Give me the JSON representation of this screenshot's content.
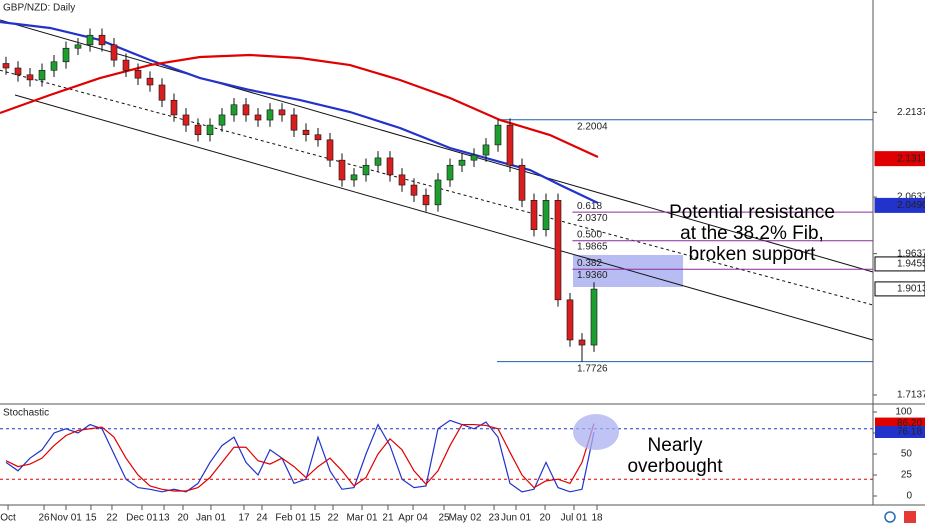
{
  "chart_data": {
    "type": "candlestick",
    "title": "GBP/NZD: Daily",
    "up_color": "#1e9e2e",
    "down_color": "#d81e1e",
    "open": [
      2.3,
      2.292,
      2.28,
      2.271,
      2.288,
      2.303,
      2.327,
      2.333,
      2.35,
      2.333,
      2.306,
      2.288,
      2.274,
      2.262,
      2.235,
      2.209,
      2.191,
      2.174,
      2.191,
      2.209,
      2.227,
      2.209,
      2.2,
      2.218,
      2.209,
      2.182,
      2.174,
      2.165,
      2.129,
      2.094,
      2.103,
      2.12,
      2.133,
      2.103,
      2.085,
      2.067,
      2.05,
      2.094,
      2.12,
      2.129,
      2.138,
      2.156,
      2.191,
      2.12,
      2.058,
      2.006,
      2.058,
      1.882,
      1.811,
      1.802
    ],
    "high": [
      2.312,
      2.304,
      2.292,
      2.3,
      2.315,
      2.339,
      2.345,
      2.362,
      2.362,
      2.345,
      2.318,
      2.3,
      2.286,
      2.274,
      2.247,
      2.221,
      2.203,
      2.203,
      2.221,
      2.239,
      2.239,
      2.221,
      2.23,
      2.23,
      2.221,
      2.194,
      2.186,
      2.177,
      2.141,
      2.115,
      2.132,
      2.145,
      2.145,
      2.115,
      2.097,
      2.079,
      2.106,
      2.132,
      2.141,
      2.15,
      2.168,
      2.2004,
      2.203,
      2.132,
      2.07,
      2.07,
      2.07,
      1.894,
      1.823,
      1.913
    ],
    "low": [
      2.28,
      2.268,
      2.259,
      2.259,
      2.276,
      2.291,
      2.315,
      2.321,
      2.321,
      2.294,
      2.276,
      2.262,
      2.25,
      2.223,
      2.197,
      2.179,
      2.162,
      2.162,
      2.179,
      2.197,
      2.197,
      2.188,
      2.188,
      2.197,
      2.17,
      2.162,
      2.153,
      2.117,
      2.082,
      2.082,
      2.091,
      2.108,
      2.091,
      2.073,
      2.055,
      2.038,
      2.038,
      2.082,
      2.108,
      2.117,
      2.126,
      2.144,
      2.108,
      2.046,
      1.994,
      1.994,
      1.87,
      1.799,
      1.7726,
      1.79
    ],
    "close": [
      2.292,
      2.28,
      2.271,
      2.288,
      2.303,
      2.327,
      2.333,
      2.35,
      2.333,
      2.306,
      2.288,
      2.274,
      2.262,
      2.235,
      2.209,
      2.191,
      2.174,
      2.191,
      2.209,
      2.227,
      2.209,
      2.2,
      2.218,
      2.209,
      2.182,
      2.174,
      2.165,
      2.129,
      2.094,
      2.103,
      2.12,
      2.133,
      2.103,
      2.085,
      2.067,
      2.05,
      2.094,
      2.12,
      2.129,
      2.138,
      2.156,
      2.191,
      2.12,
      2.058,
      2.006,
      2.058,
      1.882,
      1.811,
      1.802,
      1.901
    ],
    "xlim": [
      -0.5,
      72.25
    ],
    "xticks": [
      {
        "value": 0.17,
        "label": "Oct"
      },
      {
        "value": 3.17,
        "label": "26"
      },
      {
        "value": 5,
        "label": "Nov 01"
      },
      {
        "value": 7.08,
        "label": "15"
      },
      {
        "value": 8.83,
        "label": "22"
      },
      {
        "value": 11.33,
        "label": "Dec 01"
      },
      {
        "value": 13.17,
        "label": "13"
      },
      {
        "value": 14.75,
        "label": "20"
      },
      {
        "value": 17.08,
        "label": "Jan 01"
      },
      {
        "value": 19.83,
        "label": "17"
      },
      {
        "value": 21.33,
        "label": "24"
      },
      {
        "value": 23.75,
        "label": "Feb 01"
      },
      {
        "value": 25.75,
        "label": "15"
      },
      {
        "value": 27.25,
        "label": "22"
      },
      {
        "value": 29.67,
        "label": "Mar 01"
      },
      {
        "value": 31.83,
        "label": "21"
      },
      {
        "value": 33.92,
        "label": "Apr 04"
      },
      {
        "value": 36.5,
        "label": "25"
      },
      {
        "value": 38.25,
        "label": "May 02"
      },
      {
        "value": 40.67,
        "label": "23"
      },
      {
        "value": 42.5,
        "label": "Jun 01"
      },
      {
        "value": 44.92,
        "label": "20"
      },
      {
        "value": 47.33,
        "label": "Jul 01"
      },
      {
        "value": 49.25,
        "label": "18"
      }
    ],
    "ylim": [
      1.6995,
      2.4123
    ],
    "yticks": [
      2.2137,
      2.0637,
      1.9637,
      1.7137
    ],
    "moving_averages": [
      {
        "color": "#2233cc",
        "x": [
          -0.5,
          3.67,
          7.83,
          12,
          16.17,
          20.33,
          24.5,
          28.67,
          32.83,
          37,
          41.17,
          43.67,
          46.17,
          49.33
        ],
        "values": [
          2.3734,
          2.3628,
          2.3416,
          2.3062,
          2.2743,
          2.2531,
          2.2354,
          2.2142,
          2.1859,
          2.1505,
          2.1258,
          2.1116,
          2.0851,
          2.0533
        ]
      },
      {
        "color": "#e00000",
        "x": [
          -0.5,
          3.67,
          7.83,
          12,
          16.17,
          20.33,
          24.5,
          28.67,
          32.83,
          37,
          41.17,
          45.33,
          49.33
        ],
        "values": [
          2.2124,
          2.2443,
          2.2743,
          2.2973,
          2.3115,
          2.315,
          2.3097,
          2.2973,
          2.2708,
          2.239,
          2.2001,
          2.1735,
          2.1346
        ]
      }
    ],
    "trendlines": [
      {
        "x": [
          -0.5,
          72.25
        ],
        "values": [
          2.377,
          1.9312
        ],
        "dashed": false
      },
      {
        "x": [
          -0.5,
          72.25
        ],
        "values": [
          2.288,
          1.8729
        ],
        "dashed": true
      },
      {
        "x": [
          0.75,
          72.25
        ],
        "values": [
          2.2443,
          1.811
        ],
        "dashed": false
      }
    ],
    "fib": {
      "x": [
        40.92,
        72.25
      ],
      "high": 2.2004,
      "low": 1.7726,
      "ratios": [
        0.618,
        0.5,
        0.382
      ],
      "ratio_labels": [
        "0.618",
        "0.500",
        "0.382"
      ],
      "prices": [
        2.037,
        1.9865,
        1.936
      ],
      "price_labels": [
        "2.0370",
        "1.9865",
        "1.9360"
      ],
      "range_color": "#1f5fa8",
      "level_color": "#8e2a9e"
    },
    "highlight": {
      "x": [
        47.25,
        56.42
      ],
      "values": [
        1.9613,
        1.9047
      ],
      "color": "#aab0f0"
    },
    "price_tags": {
      "values": [
        2.1317,
        2.049,
        1.9455,
        1.9013
      ],
      "value_labels": [
        "2.1317",
        "2.0490",
        "1.9455",
        "1.9013"
      ],
      "colors": [
        "#e00000",
        "#2233cc",
        "#000000",
        "#000000"
      ]
    },
    "annotations": [
      {
        "lines": [
          "Potential resistance",
          "at the 38.2% Fib,",
          "broken support"
        ]
      },
      {
        "lines": [
          "Nearly",
          "overbought"
        ]
      }
    ],
    "stochastic": {
      "title": "Stochastic",
      "ylim": [
        -10.7,
        108.3
      ],
      "yticks": [
        100,
        75,
        50,
        25,
        0
      ],
      "levels": [
        80,
        20
      ],
      "level_colors": [
        "#2233cc",
        "#e00000"
      ],
      "series": [
        {
          "color": "#2233cc",
          "values": [
            40,
            30,
            45,
            55,
            75,
            80,
            75,
            85,
            80,
            50,
            20,
            10,
            8,
            5,
            8,
            5,
            15,
            40,
            60,
            70,
            40,
            25,
            55,
            45,
            15,
            20,
            70,
            30,
            8,
            10,
            50,
            85,
            60,
            20,
            10,
            12,
            80,
            90,
            85,
            80,
            88,
            70,
            15,
            5,
            8,
            40,
            10,
            5,
            8,
            76.18
          ]
        },
        {
          "color": "#e00000",
          "values": [
            42,
            35,
            38,
            45,
            60,
            72,
            78,
            80,
            82,
            70,
            45,
            25,
            12,
            8,
            6,
            6,
            10,
            22,
            40,
            58,
            58,
            42,
            38,
            45,
            35,
            22,
            35,
            45,
            30,
            12,
            22,
            50,
            68,
            55,
            30,
            14,
            30,
            60,
            85,
            85,
            84,
            80,
            52,
            25,
            10,
            18,
            20,
            15,
            40,
            86.2
          ]
        }
      ],
      "tags": {
        "values": [
          86.2,
          76.18
        ],
        "value_labels": [
          "86.20",
          "76.18"
        ],
        "colors": [
          "#e00000",
          "#2233cc"
        ]
      }
    }
  }
}
